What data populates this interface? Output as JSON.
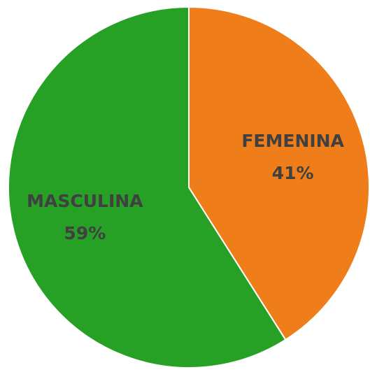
{
  "chart_data": {
    "type": "pie",
    "categories": [
      "FEMENINA",
      "MASCULINA"
    ],
    "values": [
      41,
      59
    ],
    "value_labels": [
      "41%",
      "59%"
    ],
    "colors": [
      "#ef7d1a",
      "#26a025"
    ]
  }
}
